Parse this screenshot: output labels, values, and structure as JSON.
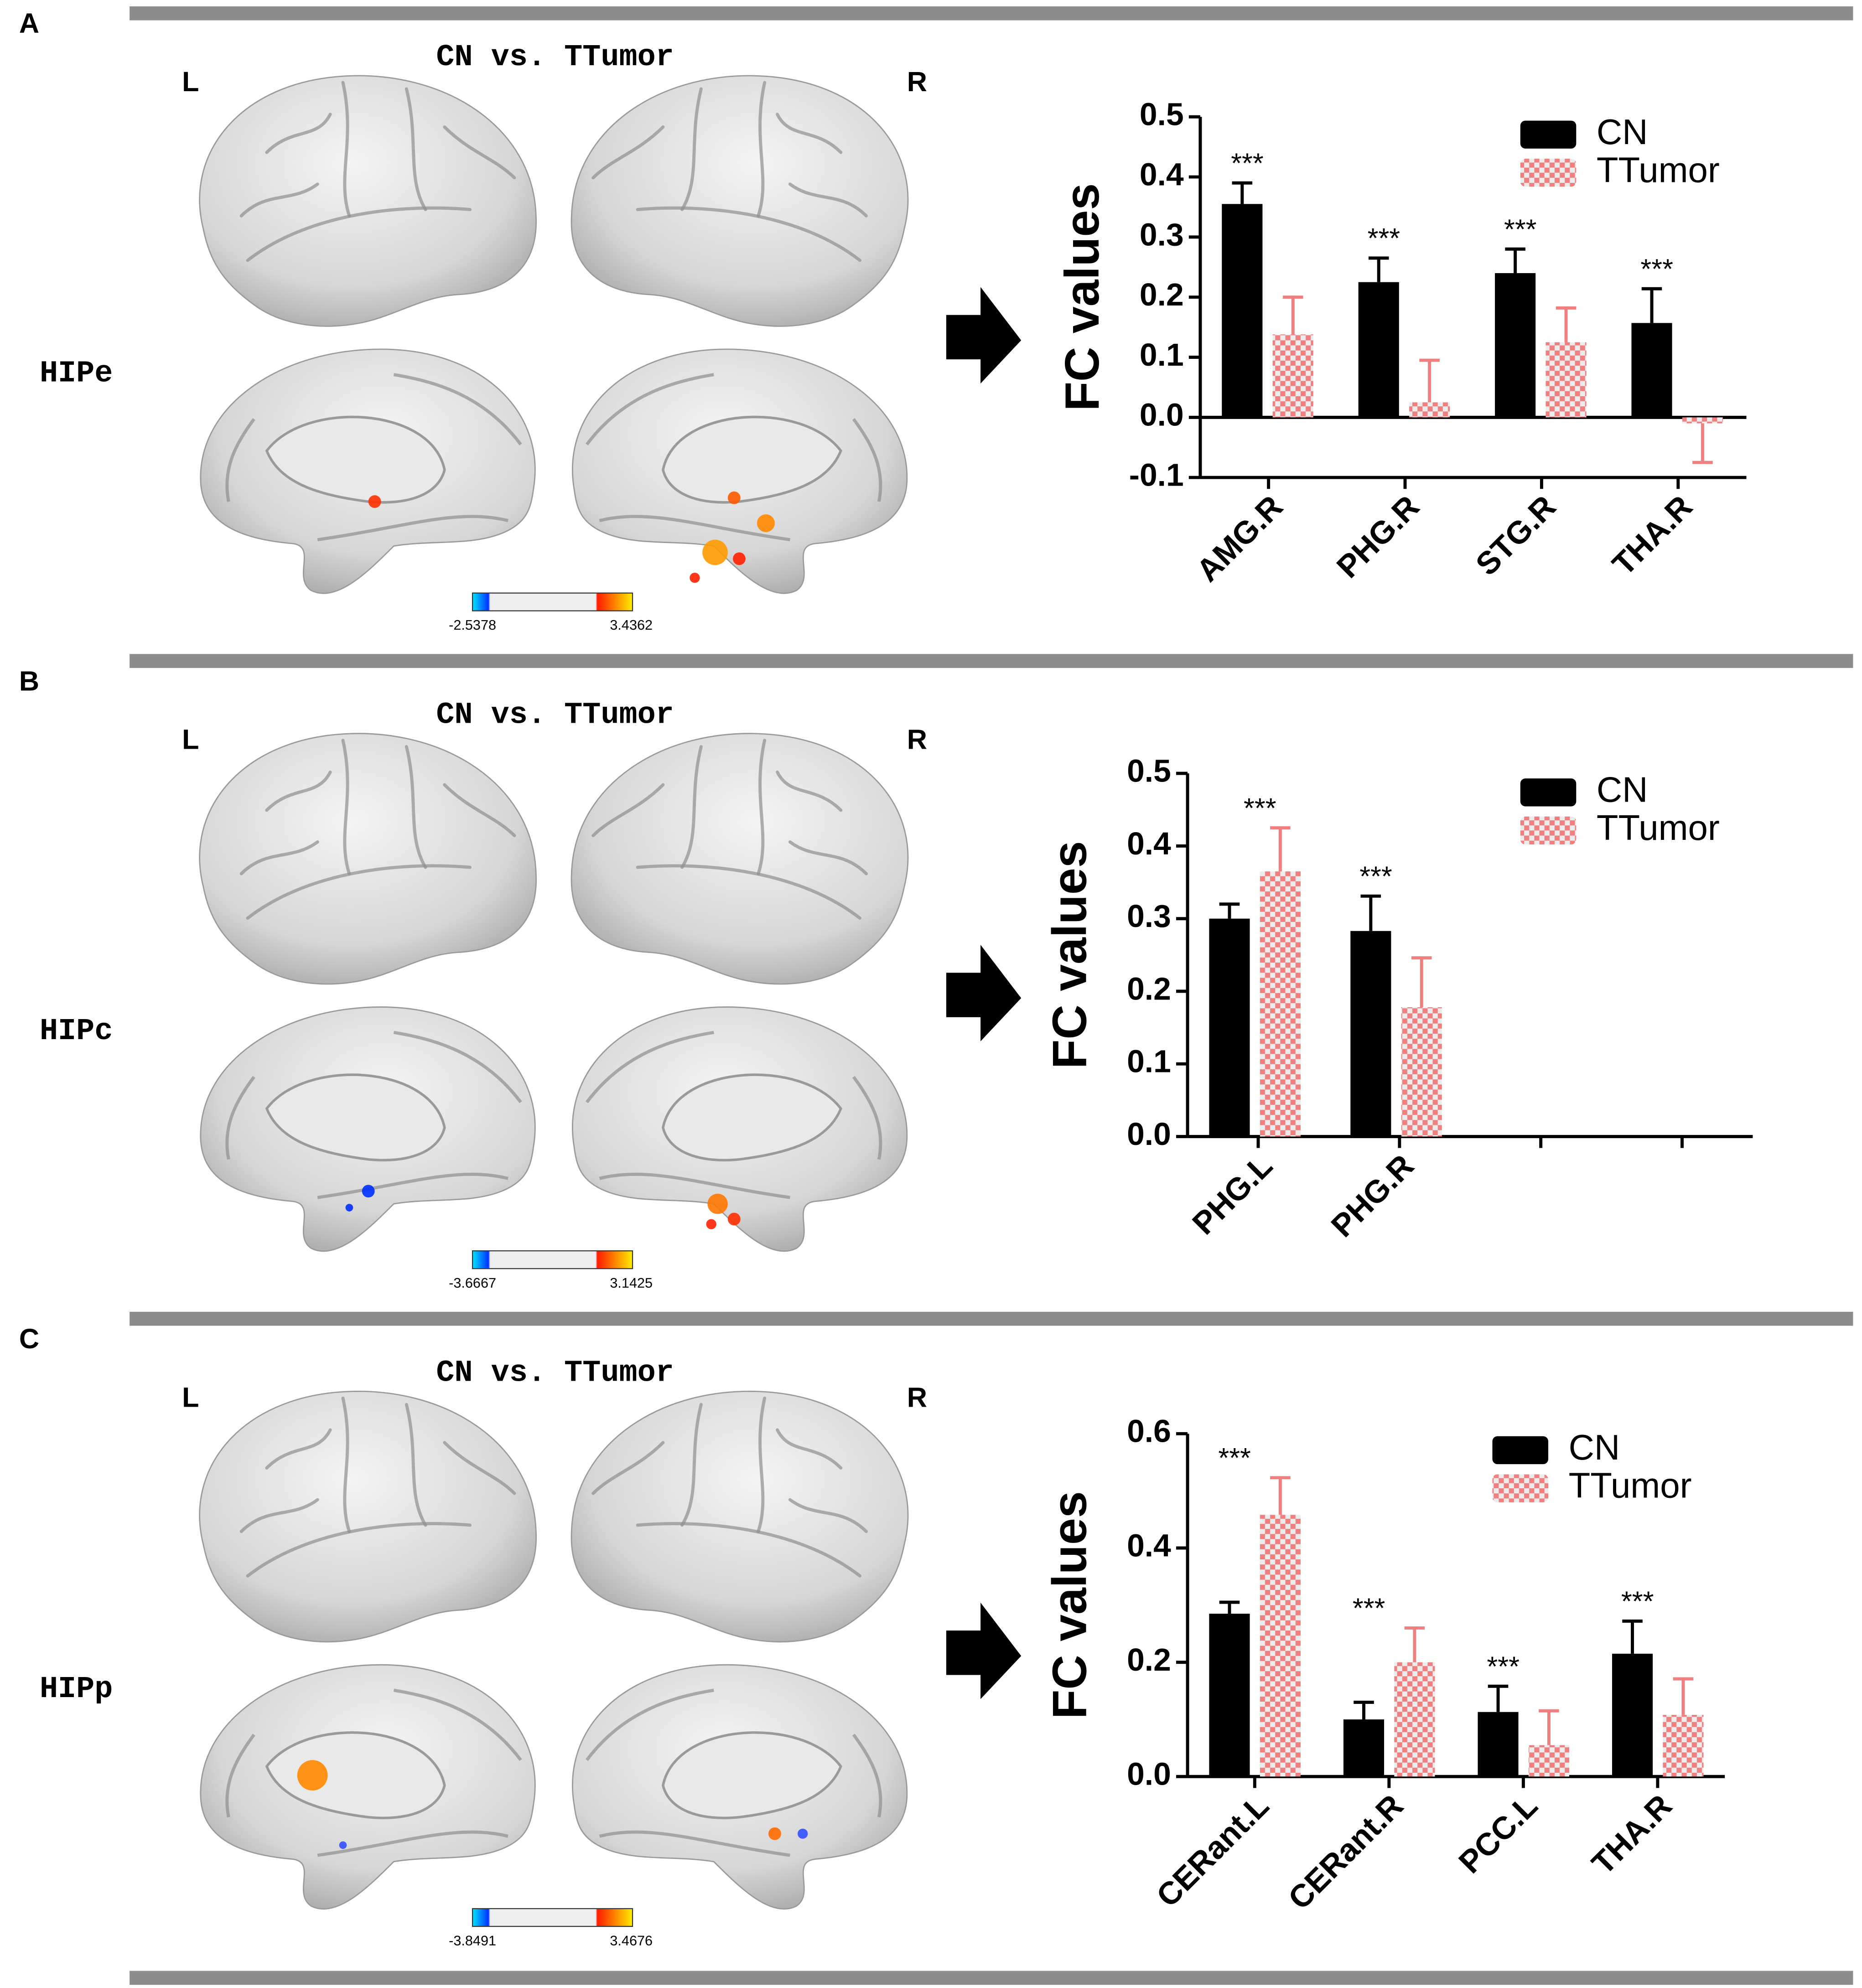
{
  "panels": [
    {
      "label": "A",
      "title": "CN vs. TTumor",
      "left": "L",
      "right": "R",
      "seed": "HIPe",
      "colorbar": [
        -2.5378,
        3.4362
      ]
    },
    {
      "label": "B",
      "title": "CN vs. TTumor",
      "left": "L",
      "right": "R",
      "seed": "HIPc",
      "colorbar": [
        -3.6667,
        3.1425
      ]
    },
    {
      "label": "C",
      "title": "CN vs. TTumor",
      "left": "L",
      "right": "R",
      "seed": "HIPp",
      "colorbar": [
        -3.8491,
        3.4676
      ]
    }
  ],
  "chart_data": [
    {
      "type": "bar",
      "ylabel": "FC values",
      "categories": [
        "AMG.R",
        "PHG.R",
        "STG.R",
        "THA.R"
      ],
      "annotations": [
        "***",
        "***",
        "***",
        "***"
      ],
      "series": [
        {
          "name": "CN",
          "color": "#000000",
          "values": [
            0.355,
            0.225,
            0.24,
            0.157
          ],
          "errors": [
            0.035,
            0.04,
            0.04,
            0.057
          ]
        },
        {
          "name": "TTumor",
          "color": "#f08080",
          "values": [
            0.138,
            0.025,
            0.125,
            -0.01
          ],
          "errors": [
            0.062,
            0.07,
            0.057,
            0.065
          ]
        }
      ],
      "ylim": [
        -0.1,
        0.5
      ],
      "yticks": [
        -0.1,
        {
          "value": 0,
          "label": "0.0"
        },
        0.1,
        0.2,
        0.3,
        0.4,
        0.5
      ],
      "legend": "upper right"
    },
    {
      "type": "bar",
      "ylabel": "FC values",
      "categories": [
        "PHG.L",
        "PHG.R",
        null,
        null
      ],
      "annotations": [
        "***",
        "***",
        null,
        null
      ],
      "series": [
        {
          "name": "CN",
          "color": "#000000",
          "values": [
            0.3,
            0.283,
            null,
            null
          ],
          "errors": [
            0.02,
            0.048,
            null,
            null
          ]
        },
        {
          "name": "TTumor",
          "color": "#f08080",
          "values": [
            0.365,
            0.178,
            null,
            null
          ],
          "errors": [
            0.06,
            0.068,
            null,
            null
          ]
        }
      ],
      "ylim": [
        0,
        0.5
      ],
      "yticks": [
        {
          "value": 0,
          "label": "0.0"
        },
        0.1,
        0.2,
        0.3,
        0.4,
        0.5
      ],
      "legend": "upper right"
    },
    {
      "type": "bar",
      "ylabel": "FC values",
      "categories": [
        "CERant.L",
        "CERant.R",
        "PCC.L",
        "THA.R"
      ],
      "annotations": [
        "***",
        "***",
        "***",
        "***"
      ],
      "series": [
        {
          "name": "CN",
          "color": "#000000",
          "values": [
            0.285,
            0.1,
            0.113,
            0.215
          ],
          "errors": [
            0.02,
            0.03,
            0.045,
            0.057
          ]
        },
        {
          "name": "TTumor",
          "color": "#f08080",
          "values": [
            0.458,
            0.2,
            0.055,
            0.108
          ],
          "errors": [
            0.065,
            0.06,
            0.06,
            0.063
          ]
        }
      ],
      "ylim": [
        0,
        0.6
      ],
      "yticks": [
        {
          "value": 0,
          "label": "0.0"
        },
        0.2,
        0.4,
        0.6
      ],
      "legend": "upper right"
    }
  ]
}
